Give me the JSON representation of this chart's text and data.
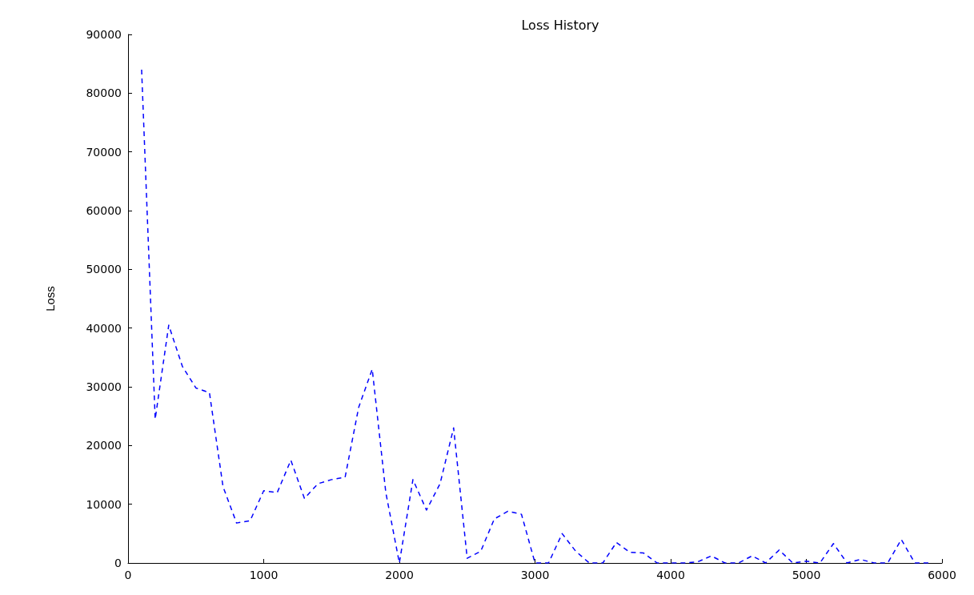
{
  "chart_data": {
    "type": "line",
    "title": "Loss History",
    "ylabel": "Loss",
    "x": [
      100,
      200,
      300,
      400,
      500,
      600,
      700,
      800,
      900,
      1000,
      1100,
      1200,
      1300,
      1400,
      1500,
      1600,
      1700,
      1800,
      1900,
      2000,
      2100,
      2200,
      2300,
      2400,
      2500,
      2600,
      2700,
      2800,
      2900,
      3000,
      3100,
      3200,
      3300,
      3400,
      3500,
      3600,
      3700,
      3800,
      3900,
      4000,
      4100,
      4200,
      4300,
      4400,
      4500,
      4600,
      4700,
      4800,
      4900,
      5000,
      5100,
      5200,
      5300,
      5400,
      5500,
      5600,
      5700,
      5800,
      5900
    ],
    "series": [
      {
        "color": "#0000ff",
        "values": [
          84000,
          24500,
          40500,
          33500,
          29800,
          29000,
          13000,
          6800,
          7200,
          12300,
          12000,
          17500,
          11000,
          13500,
          14200,
          14600,
          26500,
          33000,
          12000,
          0,
          14200,
          9000,
          13500,
          23000,
          800,
          2000,
          7500,
          8800,
          8300,
          0,
          0,
          5000,
          2000,
          0,
          0,
          3500,
          1800,
          1700,
          0,
          0,
          0,
          200,
          1200,
          0,
          0,
          1200,
          0,
          2200,
          0,
          300,
          0,
          3300,
          0,
          600,
          0,
          0,
          4000,
          0,
          0
        ]
      }
    ],
    "xlim": [
      0,
      6000
    ],
    "xticks": [
      0,
      1000,
      2000,
      3000,
      4000,
      5000,
      6000
    ],
    "ylim": [
      0,
      90000
    ],
    "yticks": [
      0,
      10000,
      20000,
      30000,
      40000,
      50000,
      60000,
      70000,
      80000,
      90000
    ],
    "grid": false,
    "marker": "none",
    "line_style": "dashed"
  }
}
